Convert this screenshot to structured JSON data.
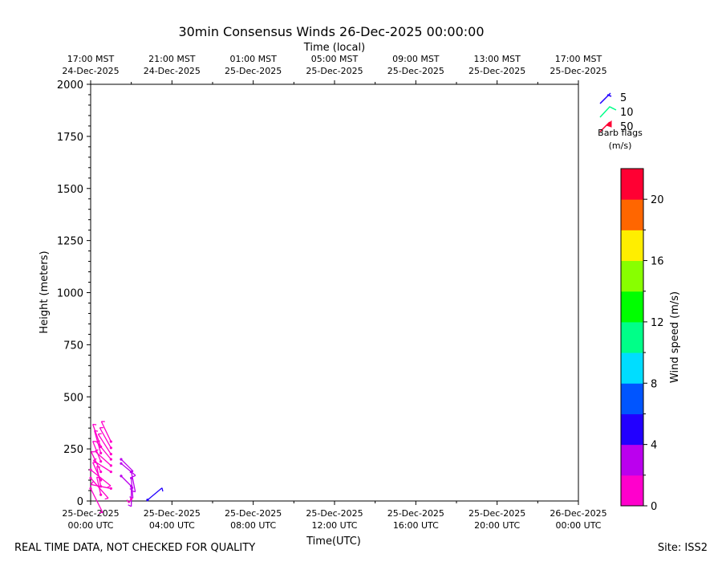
{
  "chart_data": {
    "type": "barbs",
    "title": "30min Consensus Winds 26-Dec-2025 00:00:00",
    "top_axis_label": "Time (local)",
    "xlabel": "Time(UTC)",
    "ylabel": "Height (meters)",
    "ylim": [
      0,
      2000
    ],
    "yticks": [
      "0",
      "250",
      "500",
      "750",
      "1000",
      "1250",
      "1500",
      "1750",
      "2000"
    ],
    "x_range_hours": [
      0,
      24
    ],
    "x_ticks": [
      {
        "h": 0,
        "utc": [
          "25-Dec-2025",
          "00:00 UTC"
        ],
        "local": [
          "17:00 MST",
          "24-Dec-2025"
        ]
      },
      {
        "h": 4,
        "utc": [
          "25-Dec-2025",
          "04:00 UTC"
        ],
        "local": [
          "21:00 MST",
          "24-Dec-2025"
        ]
      },
      {
        "h": 8,
        "utc": [
          "25-Dec-2025",
          "08:00 UTC"
        ],
        "local": [
          "01:00 MST",
          "25-Dec-2025"
        ]
      },
      {
        "h": 12,
        "utc": [
          "25-Dec-2025",
          "12:00 UTC"
        ],
        "local": [
          "05:00 MST",
          "25-Dec-2025"
        ]
      },
      {
        "h": 16,
        "utc": [
          "25-Dec-2025",
          "16:00 UTC"
        ],
        "local": [
          "09:00 MST",
          "25-Dec-2025"
        ]
      },
      {
        "h": 20,
        "utc": [
          "25-Dec-2025",
          "20:00 UTC"
        ],
        "local": [
          "13:00 MST",
          "25-Dec-2025"
        ]
      },
      {
        "h": 24,
        "utc": [
          "26-Dec-2025",
          "00:00 UTC"
        ],
        "local": [
          "17:00 MST",
          "25-Dec-2025"
        ]
      }
    ],
    "barbs": [
      {
        "t": 0.0,
        "h": 150,
        "dx": 25,
        "dy": 20,
        "c": "#ff00cc"
      },
      {
        "t": 0.0,
        "h": 110,
        "dx": 22,
        "dy": 25,
        "c": "#ff00cc"
      },
      {
        "t": 0.0,
        "h": 60,
        "dx": 15,
        "dy": 30,
        "c": "#ff00cc"
      },
      {
        "t": 0.5,
        "h": 260,
        "dx": -10,
        "dy": -28,
        "c": "#ff00cc"
      },
      {
        "t": 0.5,
        "h": 230,
        "dx": -8,
        "dy": -28,
        "c": "#ff00cc"
      },
      {
        "t": 0.5,
        "h": 190,
        "dx": -10,
        "dy": -25,
        "c": "#ff00cc"
      },
      {
        "t": 0.5,
        "h": 140,
        "dx": -12,
        "dy": -25,
        "c": "#ff00cc"
      },
      {
        "t": 0.5,
        "h": 100,
        "dx": -10,
        "dy": -22,
        "c": "#ff00cc"
      },
      {
        "t": 0.5,
        "h": 70,
        "dx": -5,
        "dy": -25,
        "c": "#ff00cc"
      },
      {
        "t": 0.5,
        "h": 30,
        "dx": -5,
        "dy": -22,
        "c": "#ff00cc"
      },
      {
        "t": 1.0,
        "h": 285,
        "dx": -12,
        "dy": -25,
        "c": "#ff00cc"
      },
      {
        "t": 1.0,
        "h": 255,
        "dx": -14,
        "dy": -25,
        "c": "#ff00cc"
      },
      {
        "t": 1.0,
        "h": 225,
        "dx": -16,
        "dy": -25,
        "c": "#ff00cc"
      },
      {
        "t": 1.0,
        "h": 200,
        "dx": -18,
        "dy": -22,
        "c": "#ff00cc"
      },
      {
        "t": 1.0,
        "h": 170,
        "dx": -20,
        "dy": -18,
        "c": "#ff00cc"
      },
      {
        "t": 1.0,
        "h": 140,
        "dx": -22,
        "dy": -14,
        "c": "#ff00cc"
      },
      {
        "t": 1.0,
        "h": 60,
        "dx": -25,
        "dy": -5,
        "c": "#ff00cc"
      },
      {
        "t": 1.5,
        "h": 200,
        "dx": 15,
        "dy": 15,
        "c": "#bb00ee"
      },
      {
        "t": 1.5,
        "h": 180,
        "dx": 18,
        "dy": 15,
        "c": "#bb00ee"
      },
      {
        "t": 1.5,
        "h": 120,
        "dx": 15,
        "dy": 15,
        "c": "#bb00ee"
      },
      {
        "t": 2.0,
        "h": 140,
        "dx": 5,
        "dy": 25,
        "c": "#bb00ee"
      },
      {
        "t": 2.0,
        "h": 110,
        "dx": 2,
        "dy": 25,
        "c": "#bb00ee"
      },
      {
        "t": 2.0,
        "h": 70,
        "dx": 0,
        "dy": 25,
        "c": "#bb00ee"
      },
      {
        "t": 2.0,
        "h": 10,
        "dx": -3,
        "dy": 5,
        "c": "#ff00cc"
      },
      {
        "t": 2.8,
        "h": 5,
        "dx": 18,
        "dy": -15,
        "c": "#2200ff"
      }
    ],
    "barb_legend": {
      "title": "Barb flags",
      "units": "(m/s)",
      "items": [
        {
          "label": "5",
          "color": "#2200ff"
        },
        {
          "label": "10",
          "color": "#00ff88"
        },
        {
          "label": "50",
          "color": "#ff0033"
        }
      ]
    },
    "colorbar": {
      "label": "Wind speed (m/s)",
      "vmin": 0,
      "vmax": 22,
      "ticks": [
        "0",
        "4",
        "8",
        "12",
        "16",
        "20"
      ],
      "colors": [
        "#ff00cc",
        "#bb00ee",
        "#2200ff",
        "#0055ff",
        "#00ddff",
        "#00ff88",
        "#00ff00",
        "#88ff00",
        "#ffee00",
        "#ff6600",
        "#ff0033"
      ]
    }
  },
  "footer": {
    "left": "REAL TIME DATA, NOT CHECKED FOR QUALITY",
    "right": "Site: ISS2"
  }
}
